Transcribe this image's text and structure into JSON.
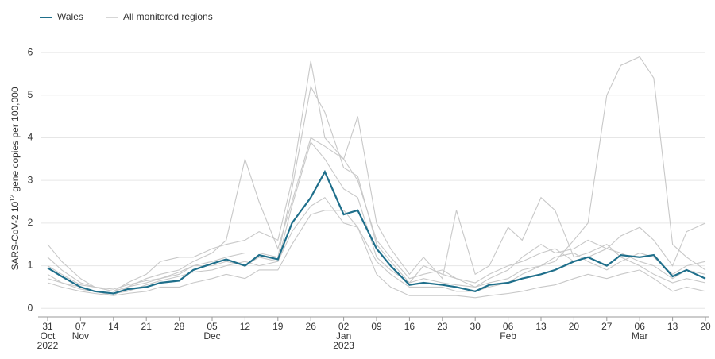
{
  "chart_data": {
    "type": "line",
    "ylabel": [
      "SARS-CoV-2 10",
      "12",
      " gene copies per 100,000"
    ],
    "x": [
      "2022-10-31",
      "2022-11-03",
      "2022-11-07",
      "2022-11-10",
      "2022-11-14",
      "2022-11-17",
      "2022-11-21",
      "2022-11-24",
      "2022-11-28",
      "2022-12-01",
      "2022-12-05",
      "2022-12-08",
      "2022-12-12",
      "2022-12-15",
      "2022-12-19",
      "2022-12-22",
      "2022-12-26",
      "2022-12-29",
      "2023-01-02",
      "2023-01-05",
      "2023-01-09",
      "2023-01-12",
      "2023-01-16",
      "2023-01-19",
      "2023-01-23",
      "2023-01-26",
      "2023-01-30",
      "2023-02-02",
      "2023-02-06",
      "2023-02-09",
      "2023-02-13",
      "2023-02-16",
      "2023-02-20",
      "2023-02-23",
      "2023-02-27",
      "2023-03-02",
      "2023-03-06",
      "2023-03-09",
      "2023-03-13",
      "2023-03-16",
      "2023-03-20"
    ],
    "series": [
      {
        "name": "Wales",
        "color": "#1f6f8b",
        "values": [
          0.95,
          0.75,
          0.5,
          0.4,
          0.35,
          0.45,
          0.5,
          0.6,
          0.65,
          0.9,
          1.05,
          1.15,
          1.0,
          1.25,
          1.15,
          2.0,
          2.6,
          3.2,
          2.2,
          2.3,
          1.4,
          1.0,
          0.55,
          0.6,
          0.55,
          0.5,
          0.4,
          0.55,
          0.6,
          0.7,
          0.8,
          0.9,
          1.1,
          1.2,
          1.0,
          1.25,
          1.2,
          1.25,
          0.75,
          0.9,
          0.7
        ]
      }
    ],
    "regions": {
      "name": "All monitored regions",
      "color": "#c8c8c8",
      "lines": [
        [
          1.5,
          1.1,
          0.7,
          0.5,
          0.4,
          0.6,
          0.8,
          1.1,
          1.2,
          1.2,
          1.4,
          1.5,
          1.6,
          1.8,
          1.6,
          3.0,
          5.8,
          4.0,
          3.5,
          3.0,
          1.6,
          1.2,
          0.7,
          0.8,
          0.9,
          0.7,
          0.5,
          0.7,
          0.9,
          1.2,
          1.5,
          1.3,
          1.4,
          1.6,
          1.4,
          1.7,
          1.9,
          1.6,
          1.0,
          1.8,
          2.0
        ],
        [
          0.8,
          0.6,
          0.5,
          0.4,
          0.3,
          0.5,
          0.6,
          0.7,
          0.8,
          1.0,
          1.0,
          1.1,
          1.0,
          1.2,
          1.1,
          1.8,
          2.4,
          2.6,
          2.0,
          1.9,
          1.1,
          0.8,
          0.5,
          0.5,
          0.5,
          0.4,
          0.4,
          0.5,
          0.6,
          0.8,
          1.0,
          1.1,
          1.6,
          2.0,
          5.0,
          5.7,
          5.9,
          5.4,
          1.5,
          1.2,
          0.9
        ],
        [
          1.2,
          0.9,
          0.6,
          0.5,
          0.4,
          0.5,
          0.7,
          0.8,
          0.9,
          1.1,
          1.3,
          1.6,
          3.5,
          2.5,
          1.4,
          2.5,
          4.0,
          3.8,
          3.5,
          4.5,
          2.0,
          1.4,
          0.8,
          1.2,
          0.7,
          2.3,
          0.8,
          1.0,
          1.9,
          1.6,
          2.6,
          2.3,
          1.2,
          1.3,
          1.5,
          1.2,
          1.0,
          0.8,
          0.6,
          0.7,
          0.6
        ],
        [
          0.6,
          0.5,
          0.4,
          0.35,
          0.3,
          0.35,
          0.4,
          0.5,
          0.5,
          0.6,
          0.7,
          0.8,
          0.7,
          0.9,
          0.9,
          1.5,
          2.2,
          2.3,
          2.3,
          1.9,
          0.8,
          0.5,
          0.3,
          0.3,
          0.3,
          0.3,
          0.25,
          0.3,
          0.35,
          0.4,
          0.5,
          0.55,
          0.7,
          0.8,
          0.7,
          0.8,
          0.9,
          0.7,
          0.4,
          0.5,
          0.4
        ],
        [
          0.7,
          0.6,
          0.45,
          0.4,
          0.35,
          0.4,
          0.55,
          0.65,
          0.75,
          0.85,
          0.9,
          1.0,
          1.1,
          1.0,
          1.1,
          2.4,
          3.9,
          3.5,
          2.8,
          2.6,
          1.2,
          0.9,
          0.6,
          0.7,
          0.6,
          0.55,
          0.5,
          0.6,
          0.7,
          0.9,
          1.0,
          1.2,
          1.3,
          1.1,
          0.9,
          1.1,
          1.3,
          1.2,
          0.8,
          1.0,
          1.1
        ],
        [
          1.0,
          0.8,
          0.55,
          0.5,
          0.45,
          0.55,
          0.65,
          0.7,
          0.85,
          1.0,
          1.1,
          1.2,
          1.3,
          1.3,
          1.2,
          2.8,
          5.2,
          4.6,
          3.3,
          3.1,
          1.5,
          1.1,
          0.6,
          1.0,
          0.8,
          0.7,
          0.6,
          0.8,
          1.0,
          1.1,
          1.3,
          1.4,
          1.1,
          1.2,
          1.4,
          1.3,
          1.1,
          1.0,
          0.7,
          0.9,
          0.8
        ]
      ]
    },
    "xlim": [
      "2022-10-31",
      "2023-03-20"
    ],
    "xticks": [
      {
        "value": "2022-10-31",
        "label": [
          "31",
          "Oct",
          "2022"
        ]
      },
      {
        "value": "2022-11-07",
        "label": [
          "07",
          "Nov"
        ]
      },
      {
        "value": "2022-11-14",
        "label": [
          "14"
        ]
      },
      {
        "value": "2022-11-21",
        "label": [
          "21"
        ]
      },
      {
        "value": "2022-11-28",
        "label": [
          "28"
        ]
      },
      {
        "value": "2022-12-05",
        "label": [
          "05",
          "Dec"
        ]
      },
      {
        "value": "2022-12-12",
        "label": [
          "12"
        ]
      },
      {
        "value": "2022-12-19",
        "label": [
          "19"
        ]
      },
      {
        "value": "2022-12-26",
        "label": [
          "26"
        ]
      },
      {
        "value": "2023-01-02",
        "label": [
          "02",
          "Jan",
          "2023"
        ]
      },
      {
        "value": "2023-01-09",
        "label": [
          "09"
        ]
      },
      {
        "value": "2023-01-16",
        "label": [
          "16"
        ]
      },
      {
        "value": "2023-01-23",
        "label": [
          "23"
        ]
      },
      {
        "value": "2023-01-30",
        "label": [
          "30"
        ]
      },
      {
        "value": "2023-02-06",
        "label": [
          "06",
          "Feb"
        ]
      },
      {
        "value": "2023-02-13",
        "label": [
          "13"
        ]
      },
      {
        "value": "2023-02-20",
        "label": [
          "20"
        ]
      },
      {
        "value": "2023-02-27",
        "label": [
          "27"
        ]
      },
      {
        "value": "2023-03-06",
        "label": [
          "06",
          "Mar"
        ]
      },
      {
        "value": "2023-03-13",
        "label": [
          "13"
        ]
      },
      {
        "value": "2023-03-20",
        "label": [
          "20"
        ]
      }
    ],
    "ylim": [
      -0.2,
      6.3
    ],
    "yticks": [
      0,
      1,
      2,
      3,
      4,
      5,
      6
    ],
    "grid": true
  }
}
